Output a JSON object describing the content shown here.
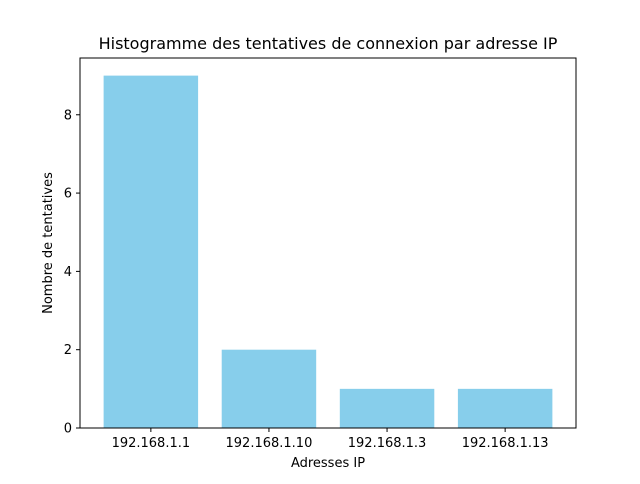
{
  "chart_data": {
    "type": "bar",
    "title": "Histogramme des tentatives de connexion par adresse IP",
    "xlabel": "Adresses IP",
    "ylabel": "Nombre de tentatives",
    "categories": [
      "192.168.1.1",
      "192.168.1.10",
      "192.168.1.3",
      "192.168.1.13"
    ],
    "values": [
      9,
      2,
      1,
      1
    ],
    "ylim": [
      0,
      9.45
    ],
    "yticks": [
      0,
      2,
      4,
      6,
      8
    ],
    "bar_color": "#87ceeb",
    "grid": false,
    "legend": "none"
  }
}
